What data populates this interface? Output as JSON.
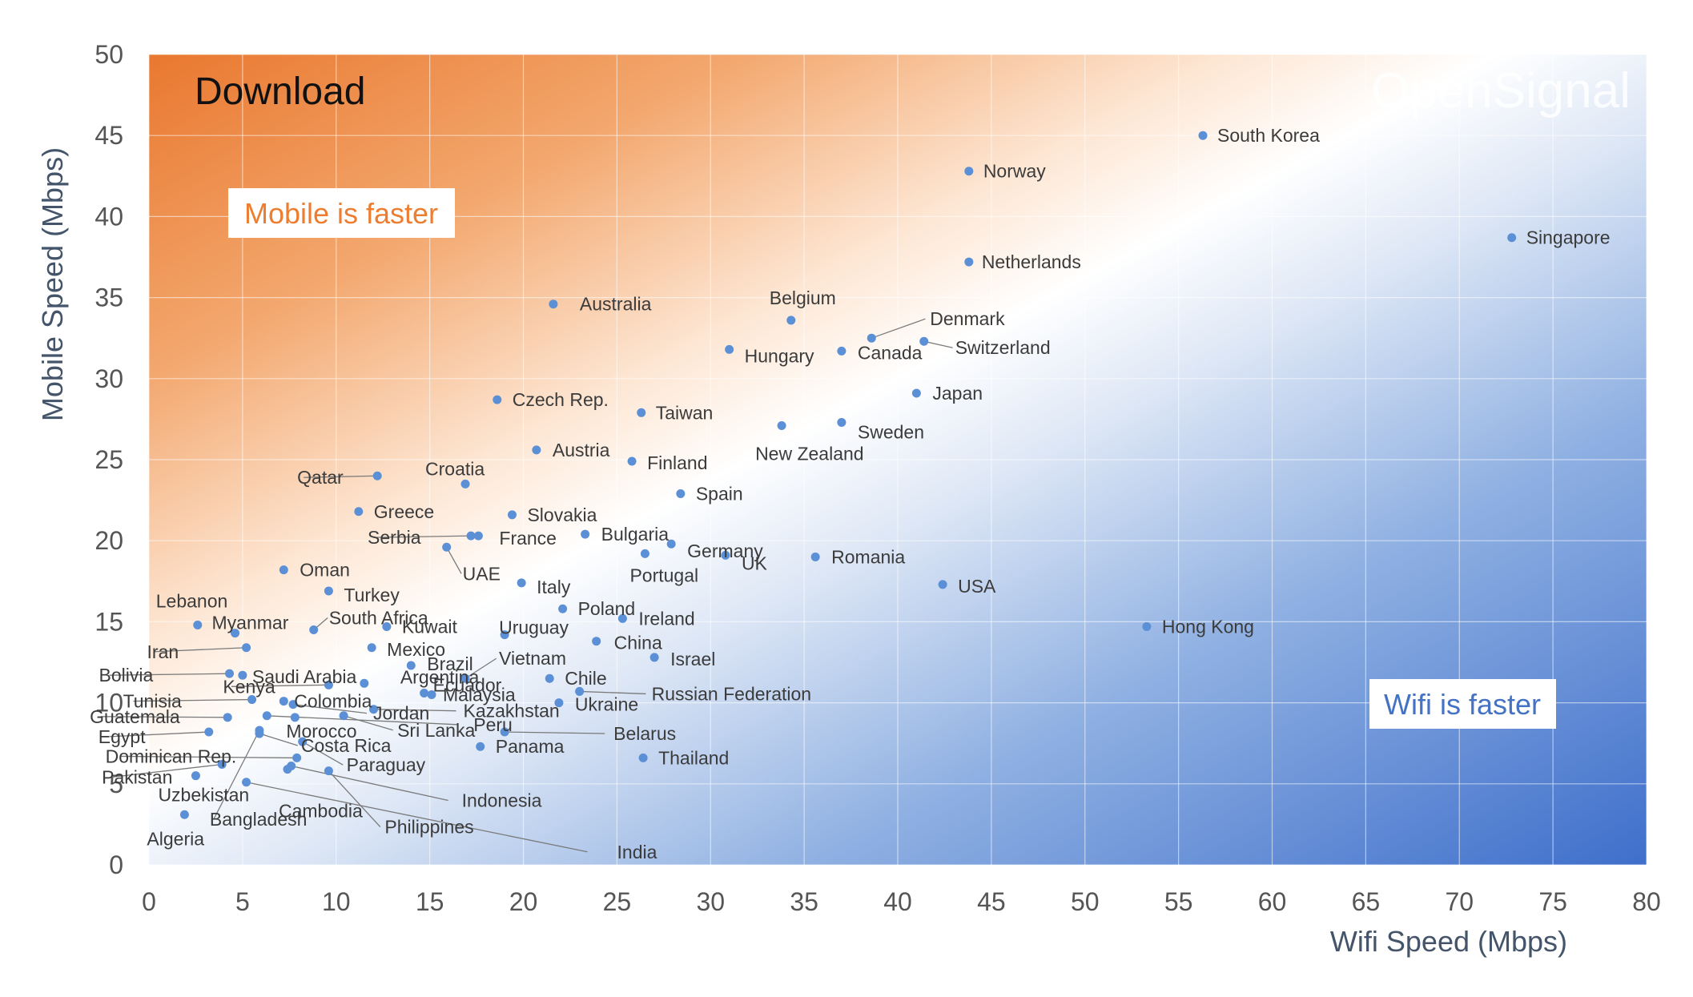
{
  "chart_data": {
    "type": "scatter",
    "title": "Download",
    "watermark": "OpenSignal",
    "xlabel": "Wifi Speed (Mbps)",
    "ylabel": "Mobile Speed (Mbps)",
    "xlim": [
      0,
      80
    ],
    "ylim": [
      0,
      50
    ],
    "xticks": [
      "0",
      "5",
      "10",
      "15",
      "20",
      "25",
      "30",
      "35",
      "40",
      "45",
      "50",
      "55",
      "60",
      "65",
      "70",
      "75",
      "80"
    ],
    "yticks": [
      "0",
      "5",
      "10",
      "15",
      "20",
      "25",
      "30",
      "35",
      "40",
      "45",
      "50"
    ],
    "grid": true,
    "annotations": {
      "mobile_faster": "Mobile is faster",
      "wifi_faster": "Wifi is faster"
    },
    "colors": {
      "mobile_region": "#ec7d31",
      "wifi_region": "#4472c4",
      "points": "#5b8fd6"
    },
    "points": [
      {
        "label": "South Korea",
        "x": 56.3,
        "y": 45.0
      },
      {
        "label": "Norway",
        "x": 43.8,
        "y": 42.8
      },
      {
        "label": "Singapore",
        "x": 72.8,
        "y": 38.7
      },
      {
        "label": "Netherlands",
        "x": 43.8,
        "y": 37.2
      },
      {
        "label": "Australia",
        "x": 21.6,
        "y": 34.6
      },
      {
        "label": "Belgium",
        "x": 34.3,
        "y": 33.6
      },
      {
        "label": "Denmark",
        "x": 38.6,
        "y": 32.5
      },
      {
        "label": "Switzerland",
        "x": 41.4,
        "y": 32.3
      },
      {
        "label": "Hungary",
        "x": 31.0,
        "y": 31.8
      },
      {
        "label": "Canada",
        "x": 37.0,
        "y": 31.7
      },
      {
        "label": "Japan",
        "x": 41.0,
        "y": 29.1
      },
      {
        "label": "Czech Rep.",
        "x": 18.6,
        "y": 28.7
      },
      {
        "label": "Taiwan",
        "x": 26.3,
        "y": 27.9
      },
      {
        "label": "Sweden",
        "x": 37.0,
        "y": 27.3
      },
      {
        "label": "New Zealand",
        "x": 33.8,
        "y": 27.1
      },
      {
        "label": "Austria",
        "x": 20.7,
        "y": 25.6
      },
      {
        "label": "Finland",
        "x": 25.8,
        "y": 24.9
      },
      {
        "label": "Qatar",
        "x": 12.2,
        "y": 24.0
      },
      {
        "label": "Croatia",
        "x": 16.9,
        "y": 23.5
      },
      {
        "label": "Spain",
        "x": 28.4,
        "y": 22.9
      },
      {
        "label": "Greece",
        "x": 11.2,
        "y": 21.8
      },
      {
        "label": "Slovakia",
        "x": 19.4,
        "y": 21.6
      },
      {
        "label": "Serbia",
        "x": 17.2,
        "y": 20.3
      },
      {
        "label": "France",
        "x": 17.6,
        "y": 20.3
      },
      {
        "label": "Bulgaria",
        "x": 23.3,
        "y": 20.4
      },
      {
        "label": "Germany",
        "x": 27.9,
        "y": 19.8
      },
      {
        "label": "UAE",
        "x": 15.9,
        "y": 19.6
      },
      {
        "label": "Portugal",
        "x": 26.5,
        "y": 19.2
      },
      {
        "label": "UK",
        "x": 30.8,
        "y": 19.1
      },
      {
        "label": "Romania",
        "x": 35.6,
        "y": 19.0
      },
      {
        "label": "Oman",
        "x": 7.2,
        "y": 18.2
      },
      {
        "label": "Italy",
        "x": 19.9,
        "y": 17.4
      },
      {
        "label": "USA",
        "x": 42.4,
        "y": 17.3
      },
      {
        "label": "Turkey",
        "x": 9.6,
        "y": 16.9
      },
      {
        "label": "Poland",
        "x": 22.1,
        "y": 15.8
      },
      {
        "label": "Ireland",
        "x": 25.3,
        "y": 15.2
      },
      {
        "label": "Lebanon",
        "x": 2.6,
        "y": 14.8
      },
      {
        "label": "Hong Kong",
        "x": 53.3,
        "y": 14.7
      },
      {
        "label": "Kuwait",
        "x": 12.7,
        "y": 14.7
      },
      {
        "label": "South Africa",
        "x": 8.8,
        "y": 14.5
      },
      {
        "label": "Myanmar",
        "x": 4.6,
        "y": 14.3
      },
      {
        "label": "Uruguay",
        "x": 19.0,
        "y": 14.2
      },
      {
        "label": "China",
        "x": 23.9,
        "y": 13.8
      },
      {
        "label": "Mexico",
        "x": 11.9,
        "y": 13.4
      },
      {
        "label": "Iran",
        "x": 5.2,
        "y": 13.4
      },
      {
        "label": "Israel",
        "x": 27.0,
        "y": 12.8
      },
      {
        "label": "Brazil",
        "x": 14.0,
        "y": 12.3
      },
      {
        "label": "Bolivia",
        "x": 4.3,
        "y": 11.8
      },
      {
        "label": "Saudi Arabia",
        "x": 5.0,
        "y": 11.7
      },
      {
        "label": "Chile",
        "x": 21.4,
        "y": 11.5
      },
      {
        "label": "Vietnam",
        "x": 16.9,
        "y": 11.5
      },
      {
        "label": "Argentina",
        "x": 11.5,
        "y": 11.2
      },
      {
        "label": "Kenya",
        "x": 9.6,
        "y": 11.1
      },
      {
        "label": "Russian Federation",
        "x": 23.0,
        "y": 10.7
      },
      {
        "label": "Malaysia",
        "x": 15.1,
        "y": 10.5
      },
      {
        "label": "Ecuador",
        "x": 14.7,
        "y": 10.6
      },
      {
        "label": "Tunisia",
        "x": 5.5,
        "y": 10.2
      },
      {
        "label": "Colombia",
        "x": 7.2,
        "y": 10.1
      },
      {
        "label": "Ukraine",
        "x": 21.9,
        "y": 10.0
      },
      {
        "label": "Jordan",
        "x": 7.7,
        "y": 9.9
      },
      {
        "label": "Kazakhstan",
        "x": 12.0,
        "y": 9.6
      },
      {
        "label": "Guatemala",
        "x": 4.2,
        "y": 9.1
      },
      {
        "label": "Peru",
        "x": 6.3,
        "y": 9.2
      },
      {
        "label": "Morocco",
        "x": 7.8,
        "y": 9.1
      },
      {
        "label": "Sri Lanka",
        "x": 10.4,
        "y": 9.2
      },
      {
        "label": "Belarus",
        "x": 19.0,
        "y": 8.2
      },
      {
        "label": "Egypt",
        "x": 3.2,
        "y": 8.2
      },
      {
        "label": "Costa Rica",
        "x": 5.9,
        "y": 8.1
      },
      {
        "label": "Panama",
        "x": 17.7,
        "y": 7.3
      },
      {
        "label": "Paraguay",
        "x": 8.2,
        "y": 7.6
      },
      {
        "label": "Thailand",
        "x": 26.4,
        "y": 6.6
      },
      {
        "label": "Dominican Rep.",
        "x": 7.9,
        "y": 6.6
      },
      {
        "label": "Pakistan",
        "x": 3.9,
        "y": 6.2
      },
      {
        "label": "Indonesia",
        "x": 7.6,
        "y": 6.1
      },
      {
        "label": "Philippines",
        "x": 9.6,
        "y": 5.8
      },
      {
        "label": "Uzbekistan",
        "x": 2.5,
        "y": 5.5
      },
      {
        "label": "Cambodia",
        "x": 7.4,
        "y": 5.9
      },
      {
        "label": "India",
        "x": 5.2,
        "y": 5.1
      },
      {
        "label": "Algeria",
        "x": 1.9,
        "y": 3.1
      },
      {
        "label": "Bangladesh",
        "x": 5.9,
        "y": 8.3
      }
    ]
  }
}
